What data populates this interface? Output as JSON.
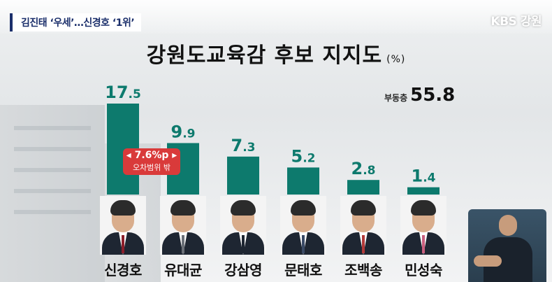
{
  "header": {
    "headline": "김진태 ‘우세’…신경호 ‘1위’",
    "logo": "KBS 강원"
  },
  "title": "강원도교육감 후보 지지도",
  "unit": "(%)",
  "undecided": {
    "label": "부동층",
    "value": "55.8"
  },
  "badge": {
    "value": "◂ 7.6%p ▸",
    "note": "오차범위 밖"
  },
  "colors": {
    "bar": "#0d7a6d",
    "headline_text": "#1b2f6b",
    "badge": "#d93a3a"
  },
  "chart_data": {
    "type": "bar",
    "title": "강원도교육감 후보 지지도",
    "unit": "%",
    "categories": [
      "신경호",
      "유대균",
      "강삼영",
      "문태호",
      "조백송",
      "민성숙"
    ],
    "values": [
      17.5,
      9.9,
      7.3,
      5.2,
      2.8,
      1.4
    ],
    "annotations": [
      {
        "text": "7.6%p",
        "note": "오차범위 밖"
      },
      {
        "text": "부동층 55.8"
      }
    ],
    "grid": false,
    "legend": "none"
  }
}
